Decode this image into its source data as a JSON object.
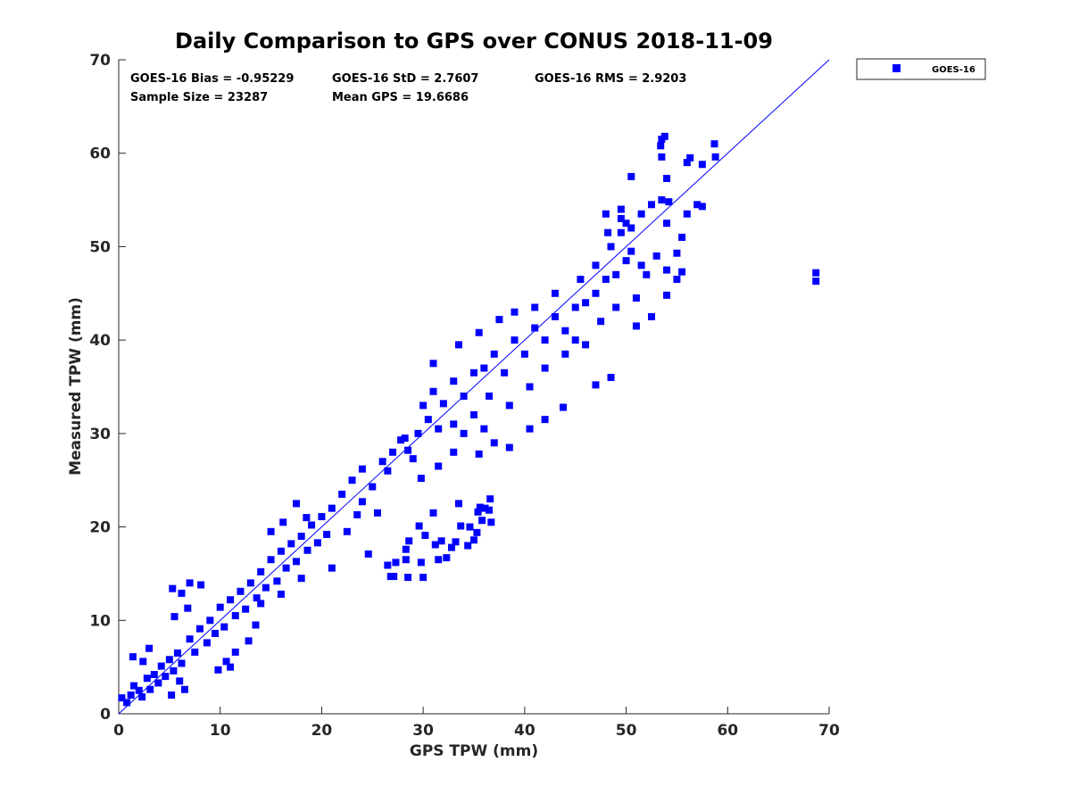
{
  "chart_data": {
    "type": "scatter",
    "title": "Daily Comparison to GPS over CONUS 2018-11-09",
    "xlabel": "GPS TPW (mm)",
    "ylabel": "Measured TPW (mm)",
    "xlim": [
      0,
      70
    ],
    "ylim": [
      0,
      70
    ],
    "xticks": [
      0,
      10,
      20,
      30,
      40,
      50,
      60,
      70
    ],
    "yticks": [
      0,
      10,
      20,
      30,
      40,
      50,
      60,
      70
    ],
    "grid": false,
    "legend_position": "outside-top-right",
    "reference_line": {
      "name": "1:1 line",
      "x": [
        0,
        70
      ],
      "y": [
        0,
        70
      ],
      "color": "#0000ff"
    },
    "stats": [
      [
        "GOES-16 Bias = -0.95229",
        "GOES-16 StD = 2.7607",
        "GOES-16 RMS = 2.9203"
      ],
      [
        "Sample Size = 23287",
        "Mean GPS = 19.6686"
      ]
    ],
    "series": [
      {
        "name": "GOES-16",
        "color": "#0000ff",
        "marker": "square",
        "description_note": null,
        "points": [
          [
            0.3,
            1.7
          ],
          [
            0.8,
            1.2
          ],
          [
            1.2,
            2.0
          ],
          [
            1.5,
            3.0
          ],
          [
            2.0,
            2.5
          ],
          [
            2.3,
            1.8
          ],
          [
            2.8,
            3.8
          ],
          [
            3.1,
            2.6
          ],
          [
            3.5,
            4.2
          ],
          [
            3.9,
            3.3
          ],
          [
            4.2,
            5.1
          ],
          [
            4.6,
            4.0
          ],
          [
            5.0,
            5.8
          ],
          [
            5.4,
            4.6
          ],
          [
            5.8,
            6.5
          ],
          [
            6.2,
            5.4
          ],
          [
            1.4,
            6.1
          ],
          [
            2.4,
            5.6
          ],
          [
            3.0,
            7.0
          ],
          [
            5.2,
            2.0
          ],
          [
            6.0,
            3.5
          ],
          [
            6.5,
            2.6
          ],
          [
            7.0,
            8.0
          ],
          [
            7.5,
            6.6
          ],
          [
            5.3,
            13.4
          ],
          [
            6.2,
            12.9
          ],
          [
            7.0,
            14.0
          ],
          [
            8.1,
            13.8
          ],
          [
            5.5,
            10.4
          ],
          [
            6.8,
            11.3
          ],
          [
            8.0,
            9.1
          ],
          [
            8.7,
            7.6
          ],
          [
            9.0,
            10.0
          ],
          [
            9.5,
            8.6
          ],
          [
            10.0,
            11.4
          ],
          [
            10.4,
            9.3
          ],
          [
            11.0,
            12.2
          ],
          [
            11.5,
            10.5
          ],
          [
            12.0,
            13.1
          ],
          [
            12.5,
            11.2
          ],
          [
            13.0,
            14.0
          ],
          [
            13.6,
            12.4
          ],
          [
            14.0,
            15.2
          ],
          [
            14.5,
            13.5
          ],
          [
            15.0,
            16.5
          ],
          [
            15.6,
            14.2
          ],
          [
            16.0,
            17.4
          ],
          [
            16.5,
            15.6
          ],
          [
            17.0,
            18.2
          ],
          [
            17.5,
            16.3
          ],
          [
            18.0,
            19.0
          ],
          [
            18.6,
            17.5
          ],
          [
            19.0,
            20.2
          ],
          [
            19.6,
            18.3
          ],
          [
            20.0,
            21.1
          ],
          [
            20.5,
            19.2
          ],
          [
            15.0,
            19.5
          ],
          [
            16.2,
            20.5
          ],
          [
            17.5,
            22.5
          ],
          [
            18.5,
            21.0
          ],
          [
            11.0,
            5.0
          ],
          [
            11.5,
            6.6
          ],
          [
            12.8,
            7.8
          ],
          [
            13.5,
            9.5
          ],
          [
            9.8,
            4.7
          ],
          [
            10.6,
            5.6
          ],
          [
            14.0,
            11.8
          ],
          [
            16.0,
            12.8
          ],
          [
            18.0,
            14.5
          ],
          [
            21.0,
            15.6
          ],
          [
            22.5,
            19.5
          ],
          [
            23.5,
            21.3
          ],
          [
            21.0,
            22.0
          ],
          [
            22.0,
            23.5
          ],
          [
            23.0,
            25.0
          ],
          [
            24.0,
            26.2
          ],
          [
            24.0,
            22.7
          ],
          [
            25.0,
            24.3
          ],
          [
            26.0,
            27.0
          ],
          [
            27.0,
            28.0
          ],
          [
            25.5,
            21.5
          ],
          [
            24.6,
            17.1
          ],
          [
            26.5,
            26.0
          ],
          [
            27.8,
            29.3
          ],
          [
            28.5,
            28.2
          ],
          [
            29.5,
            30.0
          ],
          [
            30.5,
            31.5
          ],
          [
            31.5,
            30.5
          ],
          [
            29.0,
            27.3
          ],
          [
            29.8,
            25.2
          ],
          [
            28.2,
            29.5
          ],
          [
            30.0,
            33.0
          ],
          [
            31.0,
            34.5
          ],
          [
            32.0,
            33.2
          ],
          [
            33.0,
            35.6
          ],
          [
            34.0,
            34.0
          ],
          [
            35.0,
            36.5
          ],
          [
            36.0,
            37.0
          ],
          [
            37.0,
            38.5
          ],
          [
            38.0,
            36.5
          ],
          [
            39.0,
            40.0
          ],
          [
            40.0,
            38.5
          ],
          [
            41.0,
            41.3
          ],
          [
            42.0,
            40.0
          ],
          [
            43.0,
            42.5
          ],
          [
            44.0,
            41.0
          ],
          [
            45.0,
            43.5
          ],
          [
            46.0,
            44.0
          ],
          [
            47.0,
            45.0
          ],
          [
            48.0,
            46.5
          ],
          [
            49.0,
            47.0
          ],
          [
            50.0,
            48.5
          ],
          [
            31.0,
            37.5
          ],
          [
            33.5,
            39.5
          ],
          [
            35.5,
            40.8
          ],
          [
            37.5,
            42.2
          ],
          [
            39.0,
            43.0
          ],
          [
            41.0,
            43.5
          ],
          [
            43.0,
            45.0
          ],
          [
            45.5,
            46.5
          ],
          [
            33.0,
            31.0
          ],
          [
            35.0,
            32.0
          ],
          [
            36.5,
            34.0
          ],
          [
            38.5,
            33.0
          ],
          [
            40.5,
            35.0
          ],
          [
            42.0,
            37.0
          ],
          [
            44.0,
            38.5
          ],
          [
            46.0,
            39.5
          ],
          [
            35.5,
            27.8
          ],
          [
            37.0,
            29.0
          ],
          [
            38.5,
            28.5
          ],
          [
            40.5,
            30.5
          ],
          [
            42.0,
            31.5
          ],
          [
            43.8,
            32.8
          ],
          [
            47.0,
            35.2
          ],
          [
            48.5,
            36.0
          ],
          [
            31.5,
            26.5
          ],
          [
            33.0,
            28.0
          ],
          [
            34.0,
            30.0
          ],
          [
            36.0,
            30.5
          ],
          [
            45.0,
            40.0
          ],
          [
            47.5,
            42.0
          ],
          [
            49.0,
            43.5
          ],
          [
            51.0,
            44.5
          ],
          [
            47.0,
            48.0
          ],
          [
            48.5,
            50.0
          ],
          [
            49.5,
            51.5
          ],
          [
            50.5,
            52.0
          ],
          [
            51.5,
            53.5
          ],
          [
            52.5,
            54.5
          ],
          [
            53.5,
            55.0
          ],
          [
            54.0,
            52.5
          ],
          [
            52.0,
            47.0
          ],
          [
            53.0,
            49.0
          ],
          [
            54.0,
            47.5
          ],
          [
            55.0,
            49.3
          ],
          [
            55.5,
            47.3
          ],
          [
            54.0,
            44.8
          ],
          [
            52.5,
            42.5
          ],
          [
            51.0,
            41.5
          ],
          [
            50.5,
            49.5
          ],
          [
            51.5,
            48.0
          ],
          [
            50.0,
            52.5
          ],
          [
            49.5,
            54.0
          ],
          [
            55.5,
            51.0
          ],
          [
            56.0,
            53.5
          ],
          [
            57.0,
            54.5
          ],
          [
            55.0,
            46.5
          ],
          [
            53.5,
            61.5
          ],
          [
            53.8,
            61.8
          ],
          [
            53.4,
            60.8
          ],
          [
            53.5,
            59.6
          ],
          [
            54.0,
            57.3
          ],
          [
            56.0,
            59.0
          ],
          [
            56.3,
            59.5
          ],
          [
            57.5,
            58.8
          ],
          [
            58.7,
            61.0
          ],
          [
            58.8,
            59.6
          ],
          [
            54.2,
            54.8
          ],
          [
            57.5,
            54.3
          ],
          [
            50.5,
            57.5
          ],
          [
            48.0,
            53.5
          ],
          [
            48.2,
            51.5
          ],
          [
            49.5,
            53.0
          ],
          [
            68.7,
            47.2
          ],
          [
            68.7,
            46.3
          ],
          [
            26.5,
            15.9
          ],
          [
            26.8,
            14.7
          ],
          [
            27.1,
            14.7
          ],
          [
            27.3,
            16.2
          ],
          [
            28.3,
            17.6
          ],
          [
            28.3,
            16.5
          ],
          [
            28.5,
            14.6
          ],
          [
            28.6,
            18.5
          ],
          [
            29.8,
            16.2
          ],
          [
            30.0,
            14.6
          ],
          [
            29.6,
            20.1
          ],
          [
            30.2,
            19.1
          ],
          [
            31.0,
            21.5
          ],
          [
            31.2,
            18.1
          ],
          [
            31.5,
            16.5
          ],
          [
            31.8,
            18.5
          ],
          [
            32.3,
            16.7
          ],
          [
            32.8,
            17.8
          ],
          [
            33.2,
            18.4
          ],
          [
            33.7,
            20.1
          ],
          [
            34.4,
            18.0
          ],
          [
            34.6,
            20.0
          ],
          [
            35.3,
            19.4
          ],
          [
            35.4,
            21.6
          ],
          [
            35.8,
            20.7
          ],
          [
            36.1,
            22.0
          ],
          [
            36.5,
            21.8
          ],
          [
            36.6,
            23.0
          ],
          [
            36.7,
            20.5
          ],
          [
            35.6,
            22.1
          ],
          [
            35.0,
            18.6
          ],
          [
            33.5,
            22.5
          ]
        ]
      }
    ]
  }
}
